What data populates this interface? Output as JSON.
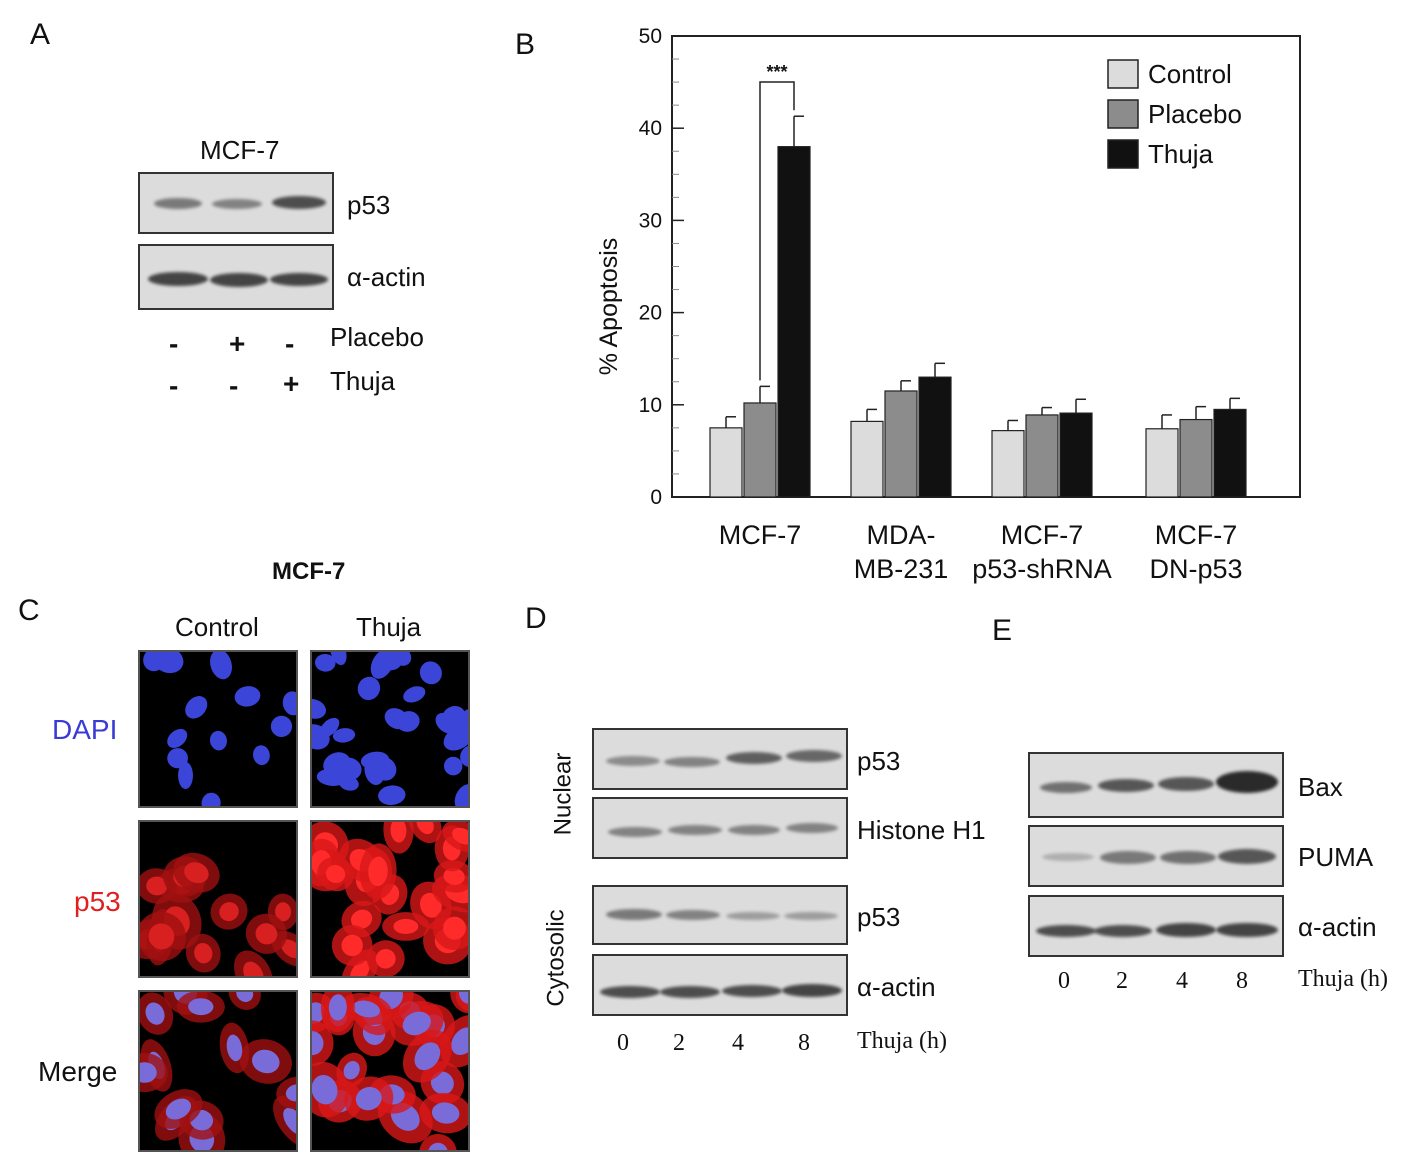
{
  "panels": {
    "a": {
      "letter": "A",
      "cell_line": "MCF-7",
      "blot_labels": [
        "p53",
        "α-actin"
      ],
      "treatments": [
        {
          "name": "Placebo",
          "signs": [
            "-",
            "+",
            "-"
          ]
        },
        {
          "name": "Thuja",
          "signs": [
            "-",
            "-",
            "+"
          ]
        }
      ]
    },
    "b": {
      "letter": "B",
      "significance": "***"
    },
    "c": {
      "letter": "C",
      "title": "MCF-7",
      "columns": [
        "Control",
        "Thuja"
      ],
      "rows": [
        "DAPI",
        "p53",
        "Merge"
      ],
      "row_colors": [
        "#3a3ad6",
        "#e02020",
        "#111111"
      ]
    },
    "d": {
      "letter": "D",
      "groups": [
        "Nuclear",
        "Cytosolic"
      ],
      "blot_labels": [
        "p53",
        "Histone H1",
        "p53",
        "α-actin"
      ],
      "timepoints": [
        "0",
        "2",
        "4",
        "8"
      ],
      "time_label": "Thuja (h)"
    },
    "e": {
      "letter": "E",
      "blot_labels": [
        "Bax",
        "PUMA",
        "α-actin"
      ],
      "timepoints": [
        "0",
        "2",
        "4",
        "8"
      ],
      "time_label": "Thuja (h)"
    }
  },
  "chart_data": {
    "type": "bar",
    "title": "",
    "xlabel": "",
    "ylabel": "% Apoptosis",
    "ylim": [
      0,
      50
    ],
    "yticks": [
      0,
      10,
      20,
      30,
      40,
      50
    ],
    "legend_position": "top-right",
    "categories": [
      [
        "MCF-7"
      ],
      [
        "MDA-",
        "MB-231"
      ],
      [
        "MCF-7",
        "p53-shRNA"
      ],
      [
        "MCF-7",
        "DN-p53"
      ]
    ],
    "series": [
      {
        "name": "Control",
        "color": "#dcdcdc",
        "values": [
          7.5,
          8.2,
          7.2,
          7.4
        ],
        "errors": [
          1.2,
          1.3,
          1.1,
          1.5
        ]
      },
      {
        "name": "Placebo",
        "color": "#8c8c8c",
        "values": [
          10.2,
          11.5,
          8.9,
          8.4
        ],
        "errors": [
          1.8,
          1.1,
          0.8,
          1.4
        ]
      },
      {
        "name": "Thuja",
        "color": "#111111",
        "values": [
          38.0,
          13.0,
          9.1,
          9.5
        ],
        "errors": [
          3.3,
          1.5,
          1.5,
          1.2
        ]
      }
    ]
  }
}
